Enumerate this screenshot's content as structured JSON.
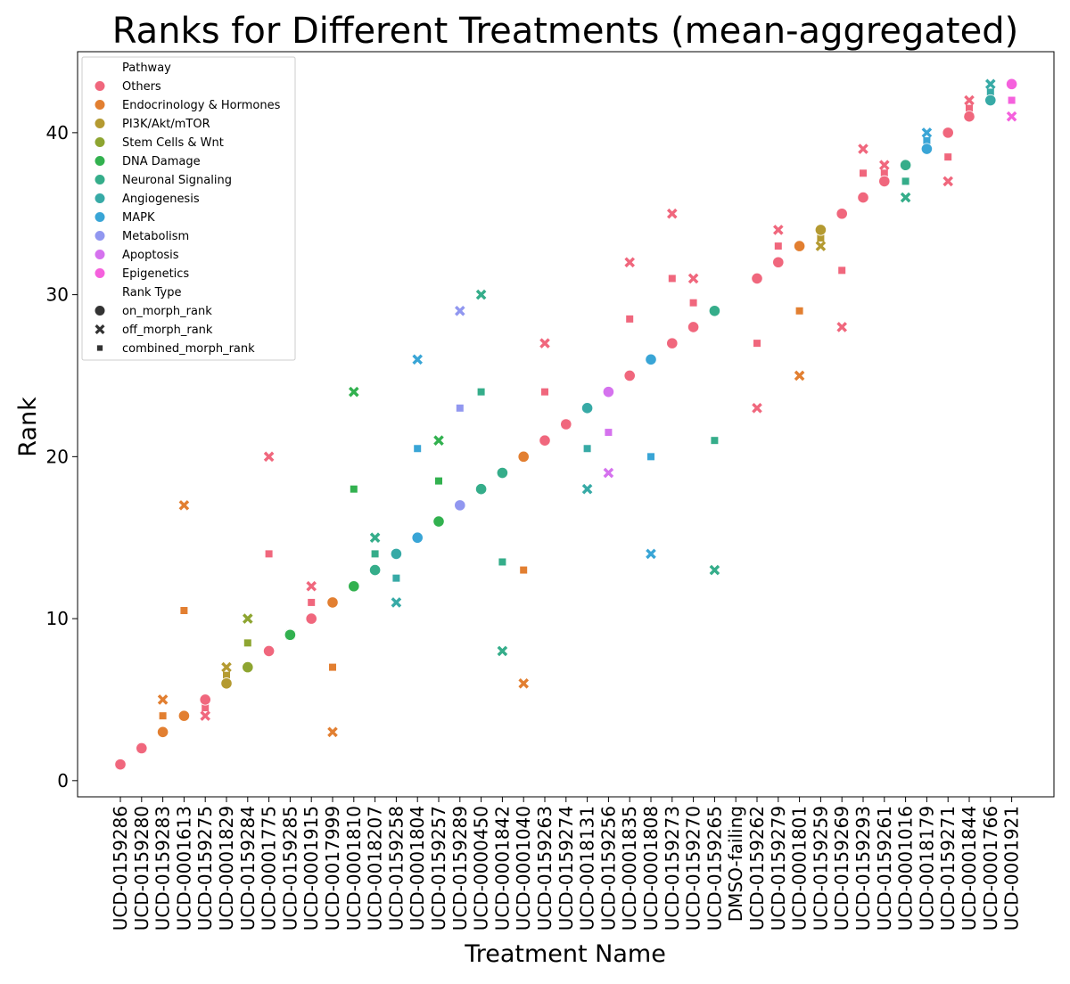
{
  "chart_data": {
    "type": "scatter",
    "title": "Ranks for Different Treatments (mean-aggregated)",
    "xlabel": "Treatment Name",
    "ylabel": "Rank",
    "ylim": [
      -1,
      45
    ],
    "yticks": [
      0,
      10,
      20,
      30,
      40
    ],
    "grid": false,
    "legend_position": "top-left",
    "categories": [
      "UCD-0159286",
      "UCD-0159280",
      "UCD-0159283",
      "UCD-0001613",
      "UCD-0159275",
      "UCD-0001829",
      "UCD-0159284",
      "UCD-0001775",
      "UCD-0159285",
      "UCD-0001915",
      "UCD-0017999",
      "UCD-0001810",
      "UCD-0018207",
      "UCD-0159258",
      "UCD-0001804",
      "UCD-0159257",
      "UCD-0159289",
      "UCD-0000450",
      "UCD-0001842",
      "UCD-0001040",
      "UCD-0159263",
      "UCD-0159274",
      "UCD-0018131",
      "UCD-0159256",
      "UCD-0001835",
      "UCD-0001808",
      "UCD-0159273",
      "UCD-0159270",
      "UCD-0159265",
      "DMSO-failing",
      "UCD-0159262",
      "UCD-0159279",
      "UCD-0001801",
      "UCD-0159259",
      "UCD-0159269",
      "UCD-0159293",
      "UCD-0159261",
      "UCD-0001016",
      "UCD-0018179",
      "UCD-0159271",
      "UCD-0001844",
      "UCD-0001766",
      "UCD-0001921"
    ],
    "legend_hue_title": "Pathway",
    "legend_style_title": "Rank Type",
    "pathways": [
      {
        "name": "Others",
        "color": "#f0677d"
      },
      {
        "name": "Endocrinology & Hormones",
        "color": "#e27f31"
      },
      {
        "name": "PI3K/Akt/mTOR",
        "color": "#b49a31"
      },
      {
        "name": "Stem Cells &  Wnt",
        "color": "#8ea531"
      },
      {
        "name": "DNA Damage",
        "color": "#32b14f"
      },
      {
        "name": "Neuronal Signaling",
        "color": "#35ad8a"
      },
      {
        "name": "Angiogenesis",
        "color": "#37aaa6"
      },
      {
        "name": "MAPK",
        "color": "#39a5d6"
      },
      {
        "name": "Metabolism",
        "color": "#9197f0"
      },
      {
        "name": "Apoptosis",
        "color": "#d572ee"
      },
      {
        "name": "Epigenetics",
        "color": "#f561dd"
      }
    ],
    "rank_types": [
      {
        "name": "on_morph_rank",
        "marker": "circle"
      },
      {
        "name": "off_morph_rank",
        "marker": "x"
      },
      {
        "name": "combined_morph_rank",
        "marker": "square"
      }
    ],
    "points": [
      {
        "x": "UCD-0159286",
        "pathway": "Others",
        "on": 1,
        "off": 1,
        "combined": 1
      },
      {
        "x": "UCD-0159280",
        "pathway": "Others",
        "on": 2,
        "off": 2,
        "combined": 2
      },
      {
        "x": "UCD-0159283",
        "pathway": "Endocrinology & Hormones",
        "on": 3,
        "off": 5,
        "combined": 4
      },
      {
        "x": "UCD-0001613",
        "pathway": "Endocrinology & Hormones",
        "on": 4,
        "off": 17,
        "combined": 10.5
      },
      {
        "x": "UCD-0159275",
        "pathway": "Others",
        "on": 5,
        "off": 4,
        "combined": 4.5
      },
      {
        "x": "UCD-0001829",
        "pathway": "PI3K/Akt/mTOR",
        "on": 6,
        "off": 7,
        "combined": 6.5
      },
      {
        "x": "UCD-0159284",
        "pathway": "Stem Cells &  Wnt",
        "on": 7,
        "off": 10,
        "combined": 8.5
      },
      {
        "x": "UCD-0001775",
        "pathway": "Others",
        "on": 8,
        "off": 20,
        "combined": 14
      },
      {
        "x": "UCD-0159285",
        "pathway": "DNA Damage",
        "on": 9,
        "off": 9,
        "combined": 9
      },
      {
        "x": "UCD-0001915",
        "pathway": "Others",
        "on": 10,
        "off": 12,
        "combined": 11
      },
      {
        "x": "UCD-0017999",
        "pathway": "Endocrinology & Hormones",
        "on": 11,
        "off": 3,
        "combined": 7
      },
      {
        "x": "UCD-0001810",
        "pathway": "DNA Damage",
        "on": 12,
        "off": 24,
        "combined": 18
      },
      {
        "x": "UCD-0018207",
        "pathway": "Neuronal Signaling",
        "on": 13,
        "off": 15,
        "combined": 14
      },
      {
        "x": "UCD-0159258",
        "pathway": "Angiogenesis",
        "on": 14,
        "off": 11,
        "combined": 12.5
      },
      {
        "x": "UCD-0001804",
        "pathway": "MAPK",
        "on": 15,
        "off": 26,
        "combined": 20.5
      },
      {
        "x": "UCD-0159257",
        "pathway": "DNA Damage",
        "on": 16,
        "off": 21,
        "combined": 18.5
      },
      {
        "x": "UCD-0159289",
        "pathway": "Metabolism",
        "on": 17,
        "off": 29,
        "combined": 23
      },
      {
        "x": "UCD-0000450",
        "pathway": "Neuronal Signaling",
        "on": 18,
        "off": 30,
        "combined": 24
      },
      {
        "x": "UCD-0001842",
        "pathway": "Neuronal Signaling",
        "on": 19,
        "off": 8,
        "combined": 13.5
      },
      {
        "x": "UCD-0001040",
        "pathway": "Endocrinology & Hormones",
        "on": 20,
        "off": 6,
        "combined": 13
      },
      {
        "x": "UCD-0159263",
        "pathway": "Others",
        "on": 21,
        "off": 27,
        "combined": 24
      },
      {
        "x": "UCD-0159274",
        "pathway": "Others",
        "on": 22,
        "off": 22,
        "combined": 22
      },
      {
        "x": "UCD-0018131",
        "pathway": "Angiogenesis",
        "on": 23,
        "off": 18,
        "combined": 20.5
      },
      {
        "x": "UCD-0159256",
        "pathway": "Apoptosis",
        "on": 24,
        "off": 19,
        "combined": 21.5
      },
      {
        "x": "UCD-0001835",
        "pathway": "Others",
        "on": 25,
        "off": 32,
        "combined": 28.5
      },
      {
        "x": "UCD-0001808",
        "pathway": "MAPK",
        "on": 26,
        "off": 14,
        "combined": 20
      },
      {
        "x": "UCD-0159273",
        "pathway": "Others",
        "on": 27,
        "off": 35,
        "combined": 31
      },
      {
        "x": "UCD-0159270",
        "pathway": "Others",
        "on": 28,
        "off": 31,
        "combined": 29.5
      },
      {
        "x": "UCD-0159265",
        "pathway": "Neuronal Signaling",
        "on": 29,
        "off": 13,
        "combined": 21
      },
      {
        "x": "UCD-0159262",
        "pathway": "Others",
        "on": 31,
        "off": 23,
        "combined": 27
      },
      {
        "x": "UCD-0159279",
        "pathway": "Others",
        "on": 32,
        "off": 34,
        "combined": 33
      },
      {
        "x": "UCD-0001801",
        "pathway": "Endocrinology & Hormones",
        "on": 33,
        "off": 25,
        "combined": 29
      },
      {
        "x": "UCD-0159259",
        "pathway": "PI3K/Akt/mTOR",
        "on": 34,
        "off": 33,
        "combined": 33.5
      },
      {
        "x": "UCD-0159269",
        "pathway": "Others",
        "on": 35,
        "off": 28,
        "combined": 31.5
      },
      {
        "x": "UCD-0159293",
        "pathway": "Others",
        "on": 36,
        "off": 39,
        "combined": 37.5
      },
      {
        "x": "UCD-0159261",
        "pathway": "Others",
        "on": 37,
        "off": 38,
        "combined": 37.5
      },
      {
        "x": "UCD-0001016",
        "pathway": "Neuronal Signaling",
        "on": 38,
        "off": 36,
        "combined": 37
      },
      {
        "x": "UCD-0018179",
        "pathway": "MAPK",
        "on": 39,
        "off": 40,
        "combined": 39.5
      },
      {
        "x": "UCD-0159271",
        "pathway": "Others",
        "on": 40,
        "off": 37,
        "combined": 38.5
      },
      {
        "x": "UCD-0001844",
        "pathway": "Others",
        "on": 41,
        "off": 42,
        "combined": 41.5
      },
      {
        "x": "UCD-0001766",
        "pathway": "Angiogenesis",
        "on": 42,
        "off": 43,
        "combined": 42.5
      },
      {
        "x": "UCD-0001921",
        "pathway": "Epigenetics",
        "on": 43,
        "off": 41,
        "combined": 42
      }
    ]
  }
}
